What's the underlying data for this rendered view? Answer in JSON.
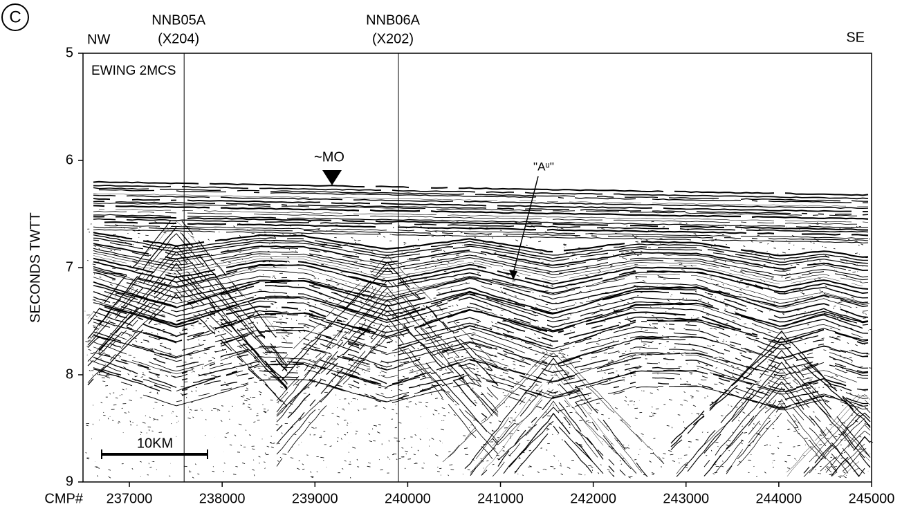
{
  "chart_data": {
    "type": "seismic-profile",
    "panel_label": "C",
    "y_label": "SECONDS TWTT",
    "x_label": "CMP#",
    "xlim": [
      236500,
      245000
    ],
    "xticks": [
      237000,
      238000,
      239000,
      240000,
      241000,
      242000,
      243000,
      244000,
      245000
    ],
    "ylim": [
      9,
      5
    ],
    "yticks": [
      5,
      6,
      7,
      8,
      9
    ],
    "left_label": "NW",
    "right_label": "SE",
    "survey_label": "EWING 2MCS",
    "markers": [
      {
        "name": "NNB05A",
        "sub": "(X204)",
        "x": 237590
      },
      {
        "name": "NNB06A",
        "sub": "(X202)",
        "x": 239900
      }
    ],
    "annotations": {
      "mo": "~MO",
      "au": "\"Aᵘ\""
    },
    "scale_bar": "10KM"
  }
}
